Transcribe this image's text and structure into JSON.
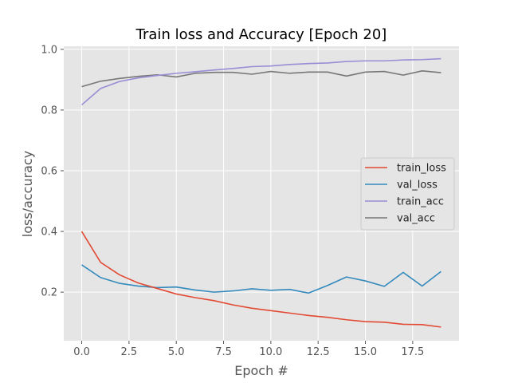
{
  "chart_data": {
    "type": "line",
    "title": "Train loss and Accuracy [Epoch 20]",
    "xlabel": "Epoch #",
    "ylabel": "loss/accuracy",
    "xlim": [
      -0.95,
      19.95
    ],
    "ylim": [
      0.04,
      1.01
    ],
    "xticks": [
      0.0,
      2.5,
      5.0,
      7.5,
      10.0,
      12.5,
      15.0,
      17.5
    ],
    "xtick_labels": [
      "0.0",
      "2.5",
      "5.0",
      "7.5",
      "10.0",
      "12.5",
      "15.0",
      "17.5"
    ],
    "yticks": [
      0.2,
      0.4,
      0.6,
      0.8,
      1.0
    ],
    "ytick_labels": [
      "0.2",
      "0.4",
      "0.6",
      "0.8",
      "1.0"
    ],
    "grid": true,
    "legend_position": "center-right",
    "style": "ggplot",
    "x": [
      0,
      1,
      2,
      3,
      4,
      5,
      6,
      7,
      8,
      9,
      10,
      11,
      12,
      13,
      14,
      15,
      16,
      17,
      18,
      19
    ],
    "series": [
      {
        "name": "train_loss",
        "color": "#E24A33",
        "values": [
          0.4,
          0.298,
          0.257,
          0.23,
          0.212,
          0.194,
          0.182,
          0.172,
          0.158,
          0.147,
          0.139,
          0.131,
          0.123,
          0.117,
          0.109,
          0.103,
          0.101,
          0.094,
          0.093,
          0.085
        ]
      },
      {
        "name": "val_loss",
        "color": "#348ABD",
        "values": [
          0.29,
          0.248,
          0.229,
          0.22,
          0.215,
          0.217,
          0.207,
          0.2,
          0.204,
          0.211,
          0.206,
          0.209,
          0.197,
          0.222,
          0.25,
          0.237,
          0.219,
          0.265,
          0.22,
          0.268
        ]
      },
      {
        "name": "train_acc",
        "color": "#988ED5",
        "values": [
          0.817,
          0.871,
          0.894,
          0.906,
          0.914,
          0.921,
          0.926,
          0.932,
          0.937,
          0.943,
          0.945,
          0.95,
          0.953,
          0.955,
          0.96,
          0.962,
          0.962,
          0.965,
          0.966,
          0.969
        ]
      },
      {
        "name": "val_acc",
        "color": "#777777",
        "values": [
          0.877,
          0.895,
          0.904,
          0.911,
          0.916,
          0.909,
          0.921,
          0.924,
          0.924,
          0.918,
          0.927,
          0.921,
          0.925,
          0.925,
          0.912,
          0.925,
          0.927,
          0.915,
          0.929,
          0.923
        ]
      }
    ]
  }
}
